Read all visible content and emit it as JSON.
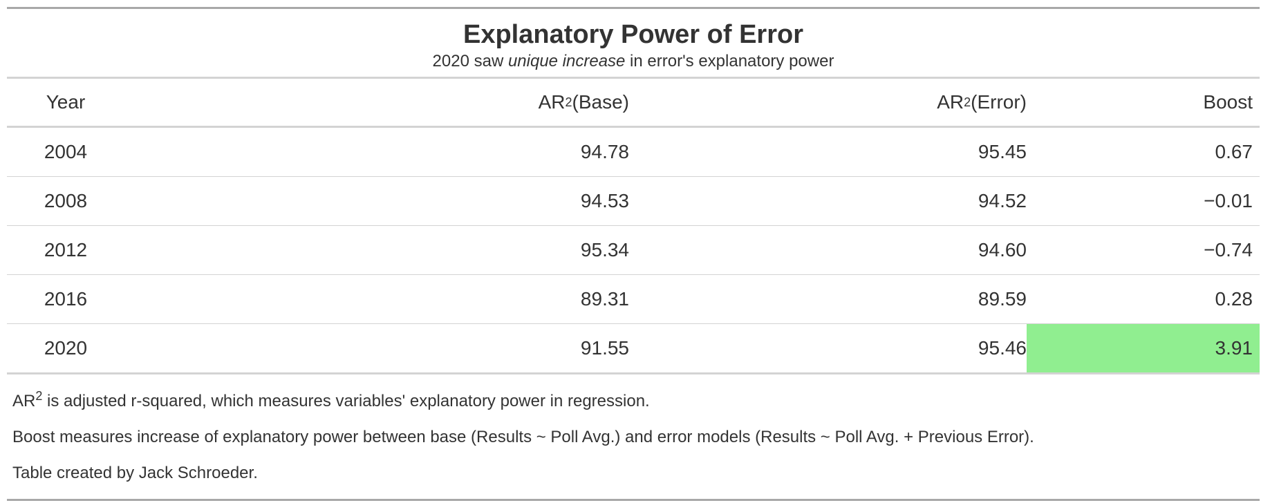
{
  "chart_data": {
    "type": "table",
    "title": "Explanatory Power of Error",
    "subtitle_pre": "2020 saw ",
    "subtitle_em": "unique increase",
    "subtitle_post": " in error's explanatory power",
    "columns": [
      {
        "pre": "",
        "label": "Year",
        "sup": "",
        "post": ""
      },
      {
        "pre": "AR",
        "label": "",
        "sup": "2",
        "post": " (Base)"
      },
      {
        "pre": "AR",
        "label": "",
        "sup": "2",
        "post": " (Error)"
      },
      {
        "pre": "",
        "label": "Boost",
        "sup": "",
        "post": ""
      }
    ],
    "rows": [
      {
        "year": "2004",
        "base": "94.78",
        "error": "95.45",
        "boost": "0.67"
      },
      {
        "year": "2008",
        "base": "94.53",
        "error": "94.52",
        "boost": "−0.01"
      },
      {
        "year": "2012",
        "base": "95.34",
        "error": "94.60",
        "boost": "−0.74"
      },
      {
        "year": "2016",
        "base": "89.31",
        "error": "89.59",
        "boost": "0.28"
      },
      {
        "year": "2020",
        "base": "91.55",
        "error": "95.46",
        "boost": "3.91"
      }
    ],
    "highlight": {
      "row": 4,
      "column": "boost",
      "color": "#90ee90"
    },
    "notes": [
      {
        "pre": "AR",
        "sup": "2",
        "text": " is adjusted r-squared, which measures variables' explanatory power in regression."
      },
      {
        "pre": "",
        "sup": "",
        "text": "Boost measures increase of explanatory power between base (Results ~ Poll Avg.) and error models (Results ~ Poll Avg. + Previous Error)."
      },
      {
        "pre": "",
        "sup": "",
        "text": "Table created by Jack Schroeder."
      }
    ]
  }
}
